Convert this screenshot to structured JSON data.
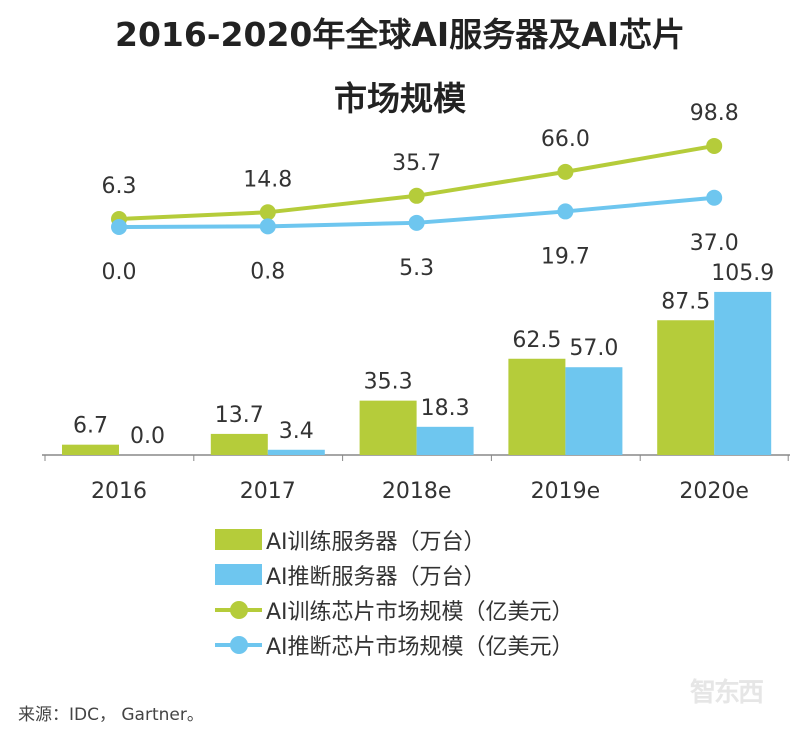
{
  "title_line1": "2016-2020年全球AI服务器及AI芯片",
  "title_line2": "市场规模",
  "source": "来源：IDC， Gartner。",
  "watermark": "智东西",
  "chart_data": {
    "type": "bar+line",
    "categories": [
      "2016",
      "2017",
      "2018e",
      "2019e",
      "2020e"
    ],
    "bar_series": [
      {
        "name": "AI训练服务器（万台）",
        "color": "#b5cc3a",
        "values": [
          6.7,
          13.7,
          35.3,
          62.5,
          87.5
        ],
        "labels": [
          "6.7",
          "13.7",
          "35.3",
          "62.5",
          "87.5"
        ]
      },
      {
        "name": "AI推断服务器（万台）",
        "color": "#6ec6ef",
        "values": [
          0.0,
          3.4,
          18.3,
          57.0,
          105.9
        ],
        "labels": [
          "0.0",
          "3.4",
          "18.3",
          "57.0",
          "105.9"
        ]
      }
    ],
    "line_series": [
      {
        "name": "AI训练芯片市场规模（亿美元）",
        "color": "#b5cc3a",
        "values": [
          6.3,
          14.8,
          35.7,
          66.0,
          98.8
        ],
        "labels": [
          "6.3",
          "14.8",
          "35.7",
          "66.0",
          "98.8"
        ]
      },
      {
        "name": "AI推断芯片市场规模（亿美元）",
        "color": "#6ec6ef",
        "values": [
          0.0,
          0.8,
          5.3,
          19.7,
          37.0
        ],
        "labels": [
          "0.0",
          "0.8",
          "5.3",
          "19.7",
          "37.0"
        ]
      }
    ],
    "grid": false,
    "legend_position": "bottom"
  }
}
